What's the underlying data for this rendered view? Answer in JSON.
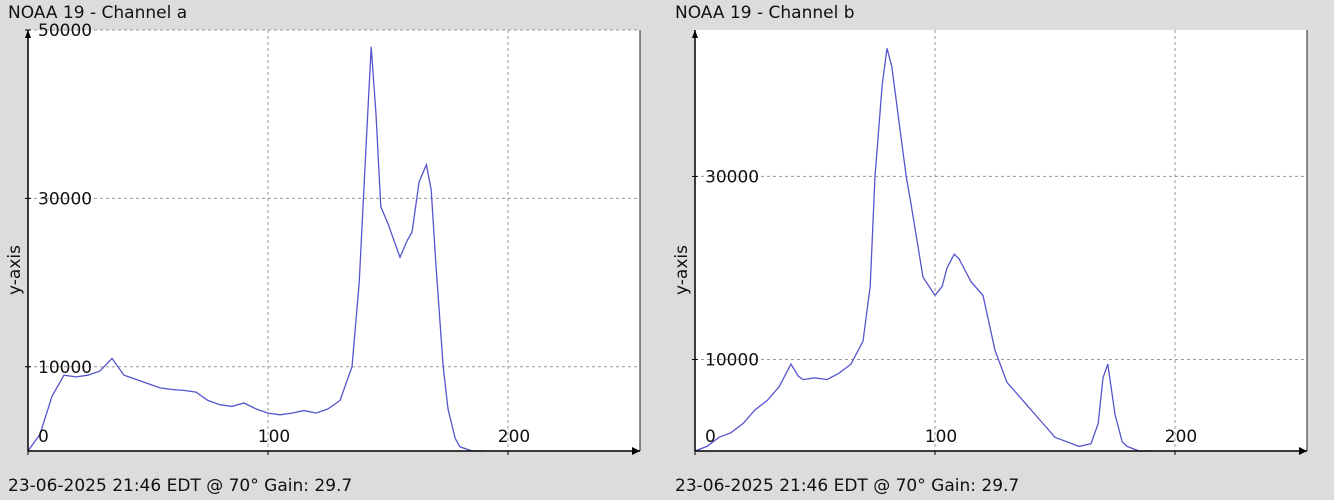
{
  "chart_data": [
    {
      "type": "line",
      "title": "NOAA 19 - Channel a",
      "ylabel": "y-axis",
      "xlabel": "",
      "footer": "23-06-2025 21:46 EDT @ 70° Gain: 29.7",
      "xlim": [
        0,
        255
      ],
      "ylim": [
        0,
        50000
      ],
      "x_ticks": [
        0,
        100,
        200
      ],
      "y_ticks": [
        10000,
        30000,
        50000
      ],
      "grid": true,
      "line_color": "#5555cc",
      "series": [
        {
          "x": [
            0,
            5,
            10,
            15,
            20,
            25,
            30,
            35,
            40,
            45,
            50,
            55,
            60,
            65,
            70,
            75,
            80,
            85,
            90,
            95,
            100,
            105,
            110,
            115,
            120,
            125,
            130,
            135,
            138,
            141,
            143,
            145,
            147,
            150,
            155,
            158,
            160,
            163,
            166,
            168,
            170,
            173,
            175,
            178,
            180,
            185,
            190
          ],
          "y": [
            0,
            2000,
            6500,
            9000,
            8800,
            9000,
            9500,
            11000,
            9000,
            8500,
            8000,
            7500,
            7300,
            7200,
            7000,
            6000,
            5500,
            5300,
            5700,
            5000,
            4500,
            4300,
            4500,
            4800,
            4500,
            5000,
            6000,
            10000,
            20000,
            37000,
            48000,
            40000,
            29000,
            27000,
            23000,
            25000,
            26000,
            32000,
            34000,
            31000,
            22000,
            10000,
            5000,
            1500,
            500,
            0,
            0
          ]
        }
      ]
    },
    {
      "type": "line",
      "title": "NOAA 19 - Channel b",
      "ylabel": "y-axis",
      "xlabel": "",
      "footer": "23-06-2025 21:46 EDT @ 70° Gain: 29.7",
      "xlim": [
        0,
        255
      ],
      "ylim": [
        0,
        46000
      ],
      "x_ticks": [
        0,
        100,
        200
      ],
      "y_ticks": [
        10000,
        30000
      ],
      "grid": true,
      "line_color": "#5555cc",
      "series": [
        {
          "x": [
            0,
            5,
            10,
            15,
            20,
            25,
            30,
            35,
            40,
            43,
            45,
            50,
            55,
            60,
            65,
            70,
            73,
            75,
            78,
            80,
            82,
            85,
            88,
            90,
            95,
            100,
            103,
            105,
            108,
            110,
            113,
            115,
            120,
            125,
            130,
            135,
            140,
            145,
            150,
            155,
            160,
            165,
            168,
            170,
            172,
            175,
            178,
            180,
            185,
            190
          ],
          "y": [
            0,
            500,
            1500,
            2000,
            3000,
            4500,
            5500,
            7000,
            9500,
            8200,
            7800,
            8000,
            7800,
            8500,
            9500,
            12000,
            18000,
            30000,
            40000,
            44000,
            42000,
            36000,
            30000,
            27000,
            19000,
            17000,
            18000,
            20000,
            21500,
            21000,
            19500,
            18500,
            17000,
            11000,
            7500,
            6000,
            4500,
            3000,
            1500,
            1000,
            500,
            800,
            3000,
            8000,
            9500,
            4000,
            1000,
            500,
            0,
            0
          ]
        }
      ]
    }
  ]
}
